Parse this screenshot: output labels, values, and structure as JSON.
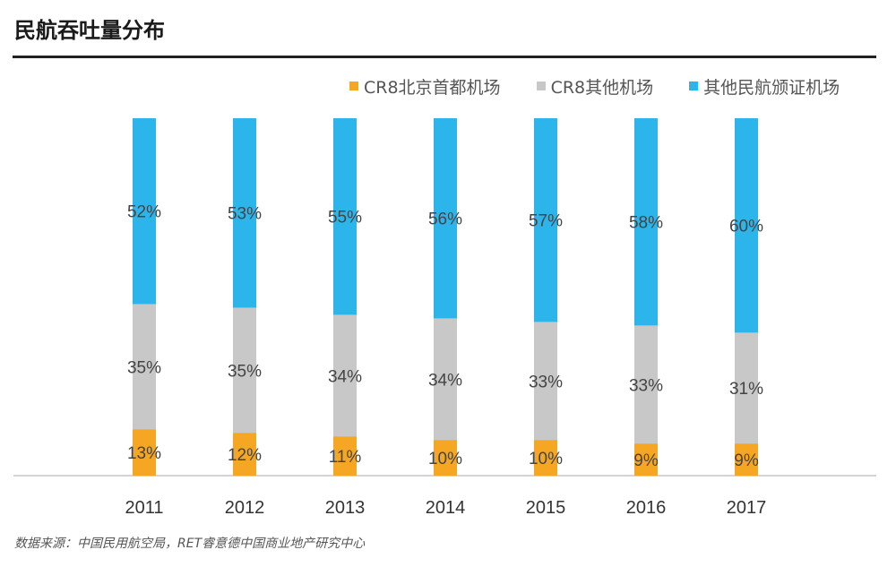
{
  "title": "民航吞吐量分布",
  "source": "数据来源：中国民用航空局，RET睿意德中国商业地产研究中心",
  "colors": {
    "beijing": "#f5a623",
    "other_cr8": "#c8c8c8",
    "other_licensed": "#2bb5ea"
  },
  "chart_data": {
    "type": "bar",
    "stacked": true,
    "normalized": true,
    "categories": [
      "2011",
      "2012",
      "2013",
      "2014",
      "2015",
      "2016",
      "2017"
    ],
    "series": [
      {
        "name": "CR8北京首都机场",
        "color": "#f5a623",
        "values": [
          13,
          12,
          11,
          10,
          10,
          9,
          9
        ],
        "labels": [
          "13%",
          "12%",
          "11%",
          "10%",
          "10%",
          "9%",
          "9%"
        ]
      },
      {
        "name": "CR8其他机场",
        "color": "#c8c8c8",
        "values": [
          35,
          35,
          34,
          34,
          33,
          33,
          31
        ],
        "labels": [
          "35%",
          "35%",
          "34%",
          "34%",
          "33%",
          "33%",
          "31%"
        ]
      },
      {
        "name": "其他民航颁证机场",
        "color": "#2bb5ea",
        "values": [
          52,
          53,
          55,
          56,
          57,
          58,
          60
        ],
        "labels": [
          "52%",
          "53%",
          "55%",
          "56%",
          "57%",
          "58%",
          "60%"
        ]
      }
    ],
    "legend_position": "top-right",
    "grid": false
  }
}
